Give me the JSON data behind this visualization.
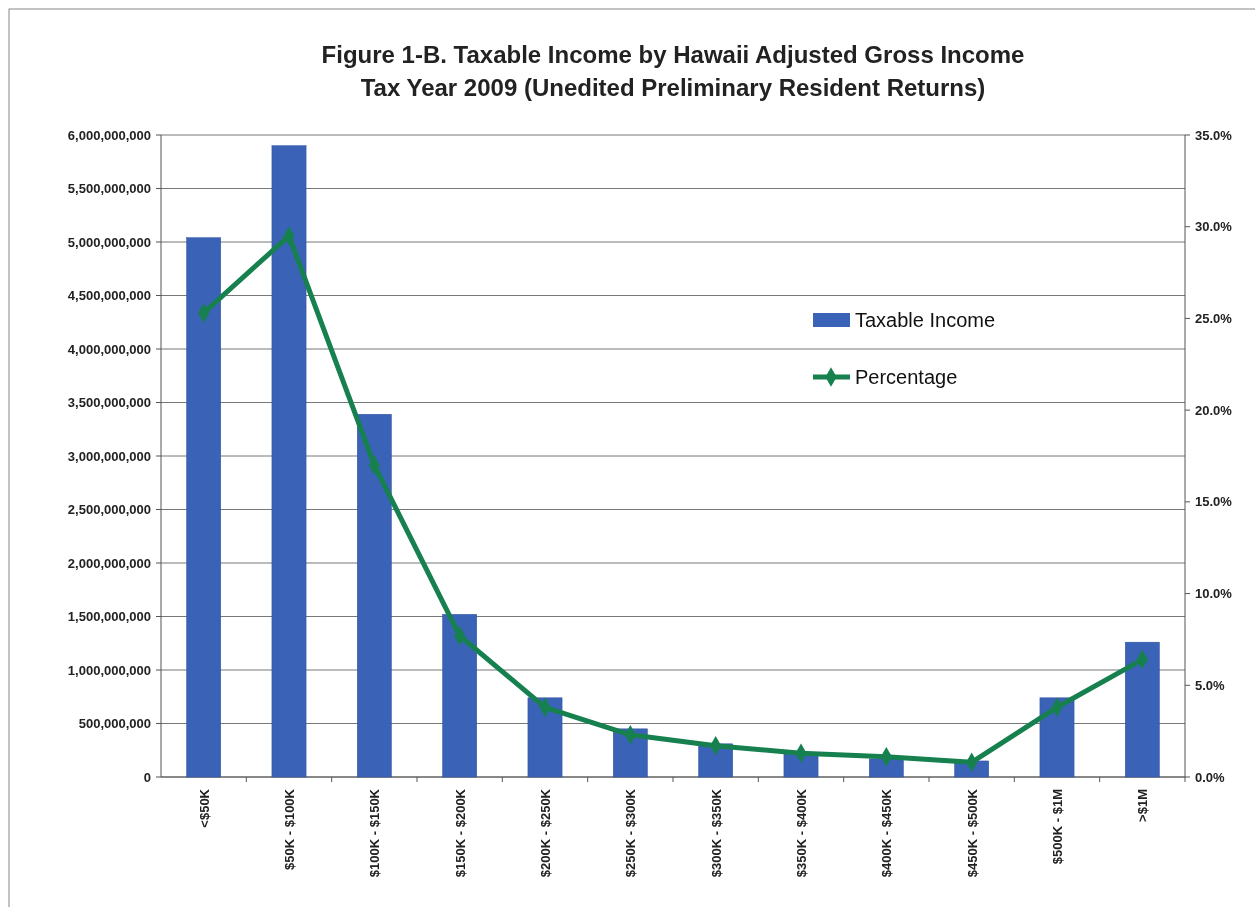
{
  "chart_data": {
    "type": "bar",
    "title": "Figure 1-B. Taxable Income by Hawaii Adjusted Gross Income\nTax Year 2009 (Unedited Preliminary Resident Returns)",
    "categories": [
      "<$50K",
      "$50K - $100K",
      "$100K - $150K",
      "$150K - $200K",
      "$200K - $250K",
      "$250K - $300K",
      "$300K - $350K",
      "$350K - $400K",
      "$400K - $450K",
      "$450K - $500K",
      "$500K - $1M",
      ">$1M"
    ],
    "series": [
      {
        "name": "Taxable Income",
        "color": "#3a63b8",
        "values": [
          5040000000,
          5900000000,
          3390000000,
          1520000000,
          740000000,
          450000000,
          310000000,
          220000000,
          170000000,
          150000000,
          740000000,
          1260000000
        ]
      },
      {
        "name": "Percentage",
        "type": "line",
        "axis": "y2",
        "color": "#17804f",
        "marker": "diamond",
        "values": [
          25.3,
          29.5,
          17.0,
          7.7,
          3.8,
          2.3,
          1.7,
          1.3,
          1.1,
          0.8,
          3.8,
          6.4
        ]
      }
    ],
    "ylim": [
      0,
      6000000000
    ],
    "yticks": [
      {
        "value": 0,
        "label": "0"
      },
      {
        "value": 500000000,
        "label": "500,000,000"
      },
      {
        "value": 1000000000,
        "label": "1,000,000,000"
      },
      {
        "value": 1500000000,
        "label": "1,500,000,000"
      },
      {
        "value": 2000000000,
        "label": "2,000,000,000"
      },
      {
        "value": 2500000000,
        "label": "2,500,000,000"
      },
      {
        "value": 3000000000,
        "label": "3,000,000,000"
      },
      {
        "value": 3500000000,
        "label": "3,500,000,000"
      },
      {
        "value": 4000000000,
        "label": "4,000,000,000"
      },
      {
        "value": 4500000000,
        "label": "4,500,000,000"
      },
      {
        "value": 5000000000,
        "label": "5,000,000,000"
      },
      {
        "value": 5500000000,
        "label": "5,500,000,000"
      },
      {
        "value": 6000000000,
        "label": "6,000,000,000"
      }
    ],
    "y2lim": [
      0,
      35
    ],
    "y2ticks": [
      {
        "value": 0,
        "label": "0.0%"
      },
      {
        "value": 5,
        "label": "5.0%"
      },
      {
        "value": 10,
        "label": "10.0%"
      },
      {
        "value": 15,
        "label": "15.0%"
      },
      {
        "value": 20,
        "label": "20.0%"
      },
      {
        "value": 25,
        "label": "25.0%"
      },
      {
        "value": 30,
        "label": "30.0%"
      },
      {
        "value": 35,
        "label": "35.0%"
      }
    ],
    "grid": "y",
    "legend": "right"
  }
}
